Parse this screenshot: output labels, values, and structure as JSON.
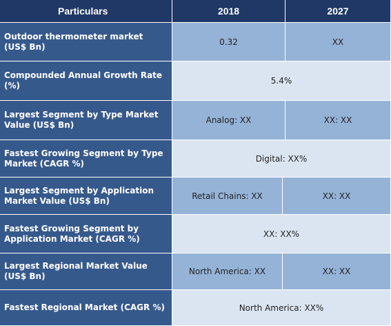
{
  "header": {
    "particulars": "Particulars",
    "year1": "2018",
    "year2": "2027"
  },
  "rows": [
    {
      "label": "Outdoor thermometer market (US$ Bn)",
      "v2018": "0.32",
      "v2027": "XX"
    },
    {
      "label": "Compounded Annual Growth Rate (%)",
      "merged": "5.4%"
    },
    {
      "label": "Largest Segment by Type Market Value (US$ Bn)",
      "v2018": "Analog: XX",
      "v2027": "XX: XX"
    },
    {
      "label": "Fastest Growing Segment by Type Market (CAGR %)",
      "merged": "Digital: XX%"
    },
    {
      "label": "Largest Segment by Application Market Value (US$ Bn)",
      "v2018": "Retail Chains: XX",
      "v2027": "XX: XX"
    },
    {
      "label": "Fastest Growing Segment by Application Market (CAGR %)",
      "merged": "XX: XX%"
    },
    {
      "label": "Largest Regional Market Value (US$ Bn)",
      "v2018": "North America: XX",
      "v2027": "XX: XX"
    },
    {
      "label": "Fastest Regional Market (CAGR %)",
      "merged": "North America: XX%"
    }
  ]
}
